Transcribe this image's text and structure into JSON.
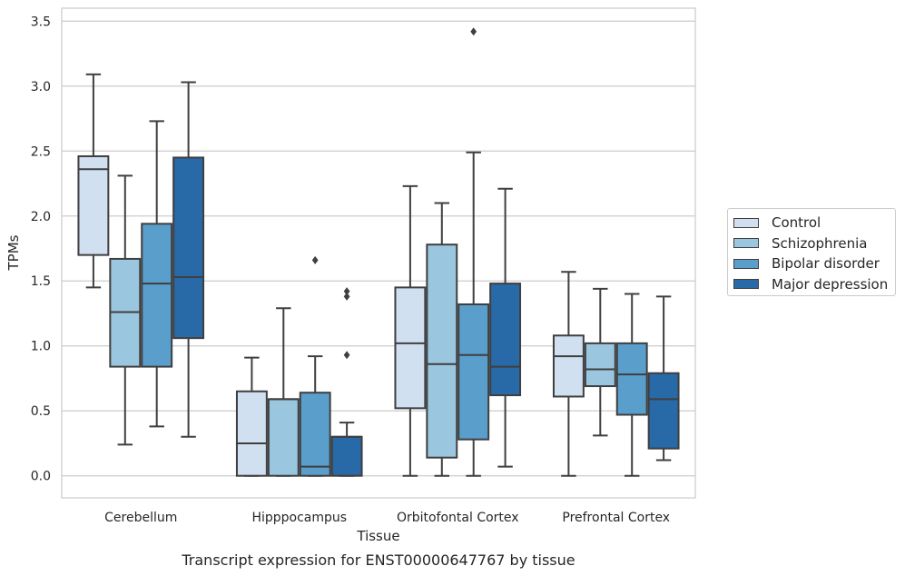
{
  "chart_data": {
    "type": "boxplot",
    "title": "Transcript expression for ENST00000647767 by tissue",
    "xlabel": "Tissue",
    "ylabel": "TPMs",
    "ylim": [
      -0.17,
      3.6
    ],
    "yticks": [
      "0.0",
      "0.5",
      "1.0",
      "1.5",
      "2.0",
      "2.5",
      "3.0",
      "3.5"
    ],
    "grid": true,
    "legend_position": "right",
    "categories": [
      "Cerebellum",
      "Hipppocampus",
      "Orbitofontal Cortex",
      "Prefrontal Cortex"
    ],
    "series": [
      {
        "name": "Control",
        "color": "#d0e0f1",
        "boxes": [
          {
            "min": 1.45,
            "q1": 1.7,
            "median": 2.36,
            "q3": 2.46,
            "max": 3.09,
            "outliers": []
          },
          {
            "min": 0.0,
            "q1": 0.0,
            "median": 0.25,
            "q3": 0.65,
            "max": 0.91,
            "outliers": []
          },
          {
            "min": 0.0,
            "q1": 0.52,
            "median": 1.02,
            "q3": 1.45,
            "max": 2.23,
            "outliers": []
          },
          {
            "min": 0.0,
            "q1": 0.61,
            "median": 0.92,
            "q3": 1.08,
            "max": 1.57,
            "outliers": []
          }
        ]
      },
      {
        "name": "Schizophrenia",
        "color": "#9ac7df",
        "boxes": [
          {
            "min": 0.24,
            "q1": 0.84,
            "median": 1.26,
            "q3": 1.67,
            "max": 2.31,
            "outliers": []
          },
          {
            "min": 0.0,
            "q1": 0.0,
            "median": 0.59,
            "q3": 0.59,
            "max": 1.29,
            "outliers": []
          },
          {
            "min": 0.0,
            "q1": 0.14,
            "median": 0.86,
            "q3": 1.78,
            "max": 2.1,
            "outliers": []
          },
          {
            "min": 0.31,
            "q1": 0.69,
            "median": 0.82,
            "q3": 1.02,
            "max": 1.44,
            "outliers": []
          }
        ]
      },
      {
        "name": "Bipolar disorder",
        "color": "#5a9ecc",
        "boxes": [
          {
            "min": 0.38,
            "q1": 0.84,
            "median": 1.48,
            "q3": 1.94,
            "max": 2.73,
            "outliers": []
          },
          {
            "min": 0.0,
            "q1": 0.0,
            "median": 0.07,
            "q3": 0.64,
            "max": 0.92,
            "outliers": [
              1.66
            ]
          },
          {
            "min": 0.0,
            "q1": 0.28,
            "median": 0.93,
            "q3": 1.32,
            "max": 2.49,
            "outliers": [
              3.42
            ]
          },
          {
            "min": 0.0,
            "q1": 0.47,
            "median": 0.78,
            "q3": 1.02,
            "max": 1.4,
            "outliers": []
          }
        ]
      },
      {
        "name": "Major depression",
        "color": "#2869a8",
        "boxes": [
          {
            "min": 0.3,
            "q1": 1.06,
            "median": 1.53,
            "q3": 2.45,
            "max": 3.03,
            "outliers": []
          },
          {
            "min": 0.0,
            "q1": 0.0,
            "median": 0.3,
            "q3": 0.3,
            "max": 0.41,
            "outliers": [
              0.93,
              1.38,
              1.42
            ]
          },
          {
            "min": 0.07,
            "q1": 0.62,
            "median": 0.84,
            "q3": 1.48,
            "max": 2.21,
            "outliers": []
          },
          {
            "min": 0.12,
            "q1": 0.21,
            "median": 0.59,
            "q3": 0.79,
            "max": 1.38,
            "outliers": []
          }
        ]
      }
    ]
  }
}
